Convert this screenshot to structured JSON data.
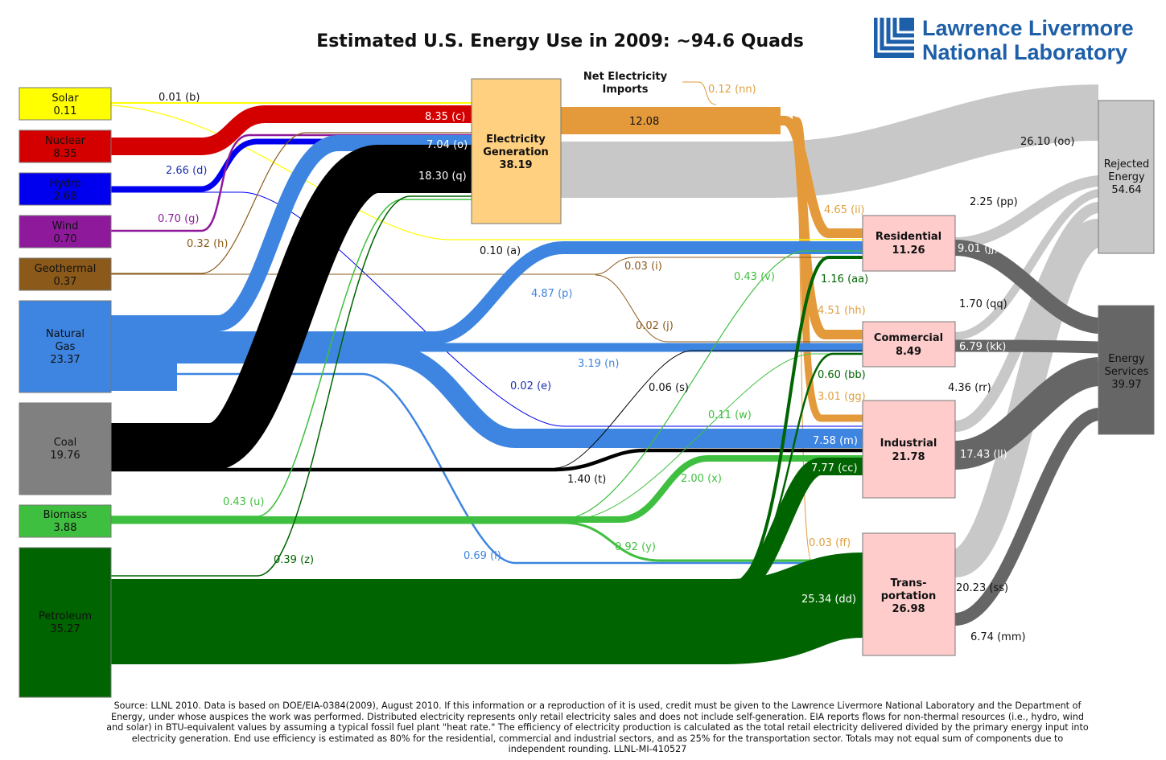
{
  "title": "Estimated U.S. Energy Use in 2009: ~94.6 Quads",
  "logo": {
    "line1": "Lawrence Livermore",
    "line2": "National Laboratory"
  },
  "imports_label": {
    "line1": "Net Electricity",
    "line2": "Imports"
  },
  "sources": [
    {
      "id": "solar",
      "name": "Solar",
      "value": "0.11",
      "color": "#ffff00"
    },
    {
      "id": "nuclear",
      "name": "Nuclear",
      "value": "8.35",
      "color": "#d40000"
    },
    {
      "id": "hydro",
      "name": "Hydro",
      "value": "2.68",
      "color": "#0000ee"
    },
    {
      "id": "wind",
      "name": "Wind",
      "value": "0.70",
      "color": "#8e1a9b"
    },
    {
      "id": "geothermal",
      "name": "Geothermal",
      "value": "0.37",
      "color": "#8b5a1a"
    },
    {
      "id": "natural-gas",
      "name": "Natural Gas",
      "value": "23.37",
      "color": "#3d85e0",
      "name_lines": [
        "Natural",
        "Gas"
      ]
    },
    {
      "id": "coal",
      "name": "Coal",
      "value": "19.76",
      "color": "#808080"
    },
    {
      "id": "biomass",
      "name": "Biomass",
      "value": "3.88",
      "color": "#3fbf3f"
    },
    {
      "id": "petroleum",
      "name": "Petroleum",
      "value": "35.27",
      "color": "#006400"
    }
  ],
  "electricity": {
    "name_lines": [
      "Electricity",
      "Generation"
    ],
    "value": "38.19",
    "color": "#ffd080"
  },
  "sectors": [
    {
      "id": "residential",
      "name": "Residential",
      "value": "11.26"
    },
    {
      "id": "commercial",
      "name": "Commercial",
      "value": "8.49"
    },
    {
      "id": "industrial",
      "name": "Industrial",
      "value": "21.78"
    },
    {
      "id": "transportation",
      "name_lines": [
        "Trans-",
        "portation"
      ],
      "value": "26.98"
    }
  ],
  "outputs": [
    {
      "id": "rejected",
      "name_lines": [
        "Rejected",
        "Energy"
      ],
      "value": "54.64"
    },
    {
      "id": "services",
      "name_lines": [
        "Energy",
        "Services"
      ],
      "value": "39.97"
    }
  ],
  "flow_labels": [
    {
      "id": "b",
      "text": "0.01 (b)",
      "color": "#111111"
    },
    {
      "id": "c",
      "text": "8.35 (c)",
      "color": "#ffffff"
    },
    {
      "id": "o",
      "text": "7.04 (o)",
      "color": "#ffffff"
    },
    {
      "id": "q",
      "text": "18.30 (q)",
      "color": "#ffffff"
    },
    {
      "id": "d",
      "text": "2.66 (d)",
      "color": "#1d2fb0"
    },
    {
      "id": "g",
      "text": "0.70 (g)",
      "color": "#8e1a9b"
    },
    {
      "id": "h",
      "text": "0.32 (h)",
      "color": "#8b5a1a"
    },
    {
      "id": "a",
      "text": "0.10 (a)",
      "color": "#111111"
    },
    {
      "id": "i",
      "text": "0.03 (i)",
      "color": "#8b5a1a"
    },
    {
      "id": "j",
      "text": "0.02 (j)",
      "color": "#8b5a1a"
    },
    {
      "id": "p",
      "text": "4.87 (p)",
      "color": "#3d85e0"
    },
    {
      "id": "n",
      "text": "3.19 (n)",
      "color": "#3d85e0"
    },
    {
      "id": "e",
      "text": "0.02 (e)",
      "color": "#1d2fb0"
    },
    {
      "id": "s",
      "text": "0.06 (s)",
      "color": "#111111"
    },
    {
      "id": "t",
      "text": "1.40 (t)",
      "color": "#111111"
    },
    {
      "id": "u",
      "text": "0.43 (u)",
      "color": "#3fbf3f"
    },
    {
      "id": "z",
      "text": "0.39 (z)",
      "color": "#006400"
    },
    {
      "id": "l",
      "text": "0.69 (l)",
      "color": "#3d85e0"
    },
    {
      "id": "y",
      "text": "0.92 (y)",
      "color": "#3fbf3f"
    },
    {
      "id": "x",
      "text": "2.00 (x)",
      "color": "#3fbf3f"
    },
    {
      "id": "w",
      "text": "0.11 (w)",
      "color": "#3fbf3f"
    },
    {
      "id": "v",
      "text": "0.43 (v)",
      "color": "#3fbf3f"
    },
    {
      "id": "nn",
      "text": "0.12 (nn)",
      "color": "#e0a040"
    },
    {
      "id": "elec",
      "text": "12.08",
      "color": "#111111"
    },
    {
      "id": "ii",
      "text": "4.65 (ii)",
      "color": "#e0a040"
    },
    {
      "id": "hh",
      "text": "4.51 (hh)",
      "color": "#e0a040"
    },
    {
      "id": "gg",
      "text": "3.01 (gg)",
      "color": "#e0a040"
    },
    {
      "id": "ff",
      "text": "0.03 (ff)",
      "color": "#e0a040"
    },
    {
      "id": "aa",
      "text": "1.16 (aa)",
      "color": "#006400"
    },
    {
      "id": "bb",
      "text": "0.60 (bb)",
      "color": "#006400"
    },
    {
      "id": "m",
      "text": "7.58 (m)",
      "color": "#ffffff"
    },
    {
      "id": "cc",
      "text": "7.77 (cc)",
      "color": "#ffffff"
    },
    {
      "id": "dd",
      "text": "25.34 (dd)",
      "color": "#ffffff"
    },
    {
      "id": "oo",
      "text": "26.10 (oo)",
      "color": "#111111"
    },
    {
      "id": "pp",
      "text": "2.25 (pp)",
      "color": "#111111"
    },
    {
      "id": "jj",
      "text": "9.01 (jj)",
      "color": "#ffffff"
    },
    {
      "id": "qq",
      "text": "1.70 (qq)",
      "color": "#111111"
    },
    {
      "id": "kk",
      "text": "6.79 (kk)",
      "color": "#ffffff"
    },
    {
      "id": "rr",
      "text": "4.36 (rr)",
      "color": "#111111"
    },
    {
      "id": "ll",
      "text": "17.43 (ll)",
      "color": "#ffffff"
    },
    {
      "id": "ss",
      "text": "20.23 (ss)",
      "color": "#111111"
    },
    {
      "id": "mm",
      "text": "6.74 (mm)",
      "color": "#111111"
    }
  ],
  "footer": "Source: LLNL 2010. Data is based on DOE/EIA-0384(2009), August 2010. If this information or a reproduction of it is used, credit must be given to the Lawrence Livermore National Laboratory and the Department of Energy, under whose auspices the work was performed. Distributed electricity represents only retail electricity sales and does not include self-generation.  EIA reports flows for non-thermal resources (i.e., hydro, wind and solar) in BTU-equivalent values by assuming a typical fossil fuel plant \"heat rate.\"  The efficiency of electricity production is calculated as the total retail electricity delivered divided by the primary energy input into electricity generation.  End use efficiency is estimated as 80% for the residential, commercial and industrial sectors, and as 25% for the transportation sector.  Totals may not equal sum of components due to independent rounding. LLNL-MI-410527"
}
